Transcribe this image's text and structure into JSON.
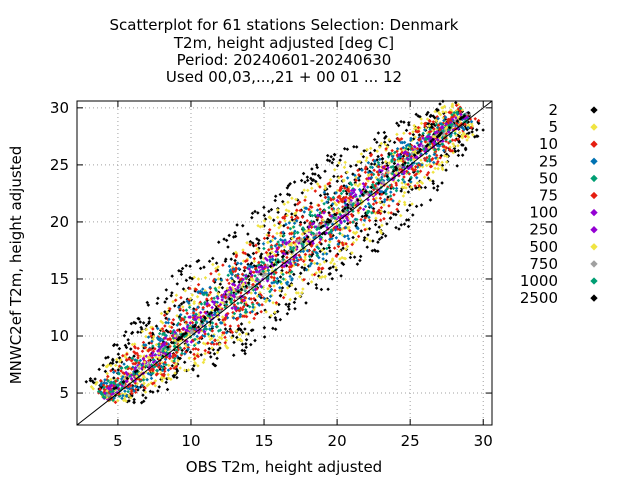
{
  "chart_data": {
    "type": "scatter",
    "title_lines": [
      "Scatterplot for   61 stations Selection: Denmark",
      "T2m, height adjusted [deg C]",
      "Period: 20240601-20240630",
      "Used 00,03,...,21 + 00 01 ... 12"
    ],
    "xlabel": "OBS T2m, height adjusted",
    "ylabel": "MNWC2ef T2m, height adjusted",
    "xlim": [
      2.2,
      30.6
    ],
    "ylim": [
      2.2,
      30.6
    ],
    "xticks": [
      5,
      10,
      15,
      20,
      25,
      30
    ],
    "yticks": [
      5,
      10,
      15,
      20,
      25,
      30
    ],
    "grid": true,
    "diagonal": true,
    "legend_placement": "right",
    "legend": [
      {
        "label": "2",
        "color": "#000000",
        "halfwidth": 6.0
      },
      {
        "label": "5",
        "color": "#f0e442",
        "halfwidth": 4.6
      },
      {
        "label": "10",
        "color": "#e51e10",
        "halfwidth": 3.7
      },
      {
        "label": "25",
        "color": "#0072b2",
        "halfwidth": 2.9
      },
      {
        "label": "50",
        "color": "#009e73",
        "halfwidth": 2.25
      },
      {
        "label": "75",
        "color": "#e51e10",
        "halfwidth": 1.7
      },
      {
        "label": "100",
        "color": "#9400d3",
        "halfwidth": 1.35
      },
      {
        "label": "250",
        "color": "#9400d3",
        "halfwidth": 1.05
      },
      {
        "label": "500",
        "color": "#f0e442",
        "halfwidth": 0.75
      },
      {
        "label": "750",
        "color": "#a0a0a0",
        "halfwidth": 0.5
      },
      {
        "label": "1000",
        "color": "#009e73",
        "halfwidth": 0.3
      },
      {
        "label": "2500",
        "color": "#000000",
        "halfwidth": 0.12
      }
    ]
  }
}
